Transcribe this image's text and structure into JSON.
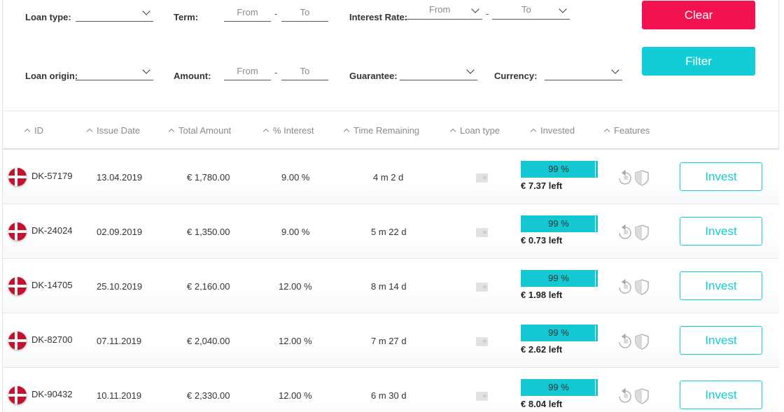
{
  "filters": {
    "loan_type_label": "Loan type:",
    "term_label": "Term:",
    "term_from": "From",
    "term_to": "To",
    "interest_rate_label": "Interest Rate:",
    "interest_from": "From",
    "interest_to": "To",
    "loan_origin_label": "Loan origin:",
    "amount_label": "Amount:",
    "amount_from": "From",
    "amount_to": "To",
    "guarantee_label": "Guarantee:",
    "currency_label": "Currency:",
    "dash": "-",
    "clear_label": "Clear",
    "filter_label": "Filter",
    "clear_color": "#f2124f",
    "filter_color": "#13cdd6"
  },
  "table": {
    "columns": [
      "ID",
      "Issue Date",
      "Total Amount",
      "% Interest",
      "Time Remaining",
      "Loan type",
      "Invested",
      "Features"
    ],
    "invest_label": "Invest",
    "rows": [
      {
        "id": "DK-57179",
        "issue_date": "13.04.2019",
        "total_amount": "€ 1,780.00",
        "interest": "9.00 %",
        "time_remaining": "4 m 2 d",
        "invested_pct": "99 %",
        "invested_fraction": 0.99,
        "left": "€ 7.37 left"
      },
      {
        "id": "DK-24024",
        "issue_date": "02.09.2019",
        "total_amount": "€ 1,350.00",
        "interest": "9.00 %",
        "time_remaining": "5 m 22 d",
        "invested_pct": "99 %",
        "invested_fraction": 0.99,
        "left": "€ 0.73 left"
      },
      {
        "id": "DK-14705",
        "issue_date": "25.10.2019",
        "total_amount": "€ 2,160.00",
        "interest": "12.00 %",
        "time_remaining": "8 m 14 d",
        "invested_pct": "99 %",
        "invested_fraction": 0.99,
        "left": "€ 1.98 left"
      },
      {
        "id": "DK-82700",
        "issue_date": "07.11.2019",
        "total_amount": "€ 2,040.00",
        "interest": "12.00 %",
        "time_remaining": "7 m 27 d",
        "invested_pct": "99 %",
        "invested_fraction": 0.99,
        "left": "€ 2.62 left"
      },
      {
        "id": "DK-90432",
        "issue_date": "10.11.2019",
        "total_amount": "€ 2,330.00",
        "interest": "12.00 %",
        "time_remaining": "6 m 30 d",
        "invested_pct": "99 %",
        "invested_fraction": 0.99,
        "left": "€ 8.04 left"
      }
    ],
    "icons": {
      "flag": "denmark-flag-icon",
      "loan_type": "wallet-icon",
      "features": [
        "buyback-guarantee-icon",
        "shield-icon"
      ]
    }
  }
}
